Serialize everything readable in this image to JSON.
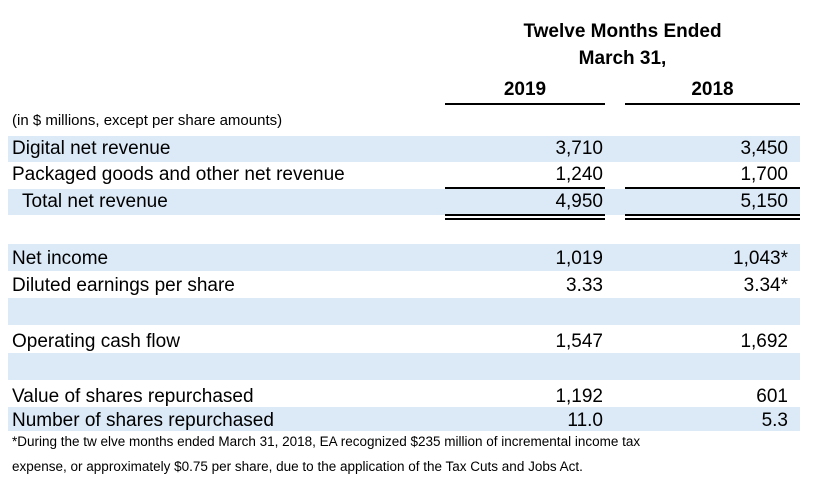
{
  "header": {
    "title_line1": "Twelve Months Ended",
    "title_line2": "March 31,",
    "col1": "2019",
    "col2": "2018"
  },
  "units_note": "(in $ millions, except per share amounts)",
  "rows": [
    {
      "label": "Digital net revenue",
      "v2019": "3,710",
      "v2018": "3,450"
    },
    {
      "label": "Packaged goods and other net revenue",
      "v2019": "1,240",
      "v2018": "1,700"
    },
    {
      "label": "Total net revenue",
      "v2019": "4,950",
      "v2018": "5,150"
    },
    {
      "label": "Net income",
      "v2019": "1,019",
      "v2018": "1,043*"
    },
    {
      "label": "Diluted earnings per share",
      "v2019": "3.33",
      "v2018": "3.34*"
    },
    {
      "label": "Operating cash flow",
      "v2019": "1,547",
      "v2018": "1,692"
    },
    {
      "label": "Value of shares repurchased",
      "v2019": "1,192",
      "v2018": "601"
    },
    {
      "label": "Number of shares repurchased",
      "v2019": "11.0",
      "v2018": "5.3"
    }
  ],
  "footnote": {
    "line1": "*During the tw elve months ended March 31, 2018, EA recognized $235 million of incremental income tax",
    "line2": "expense, or approximately $0.75 per share, due to the application of the Tax Cuts and Jobs Act."
  },
  "colors": {
    "band": "#dce9f6"
  }
}
